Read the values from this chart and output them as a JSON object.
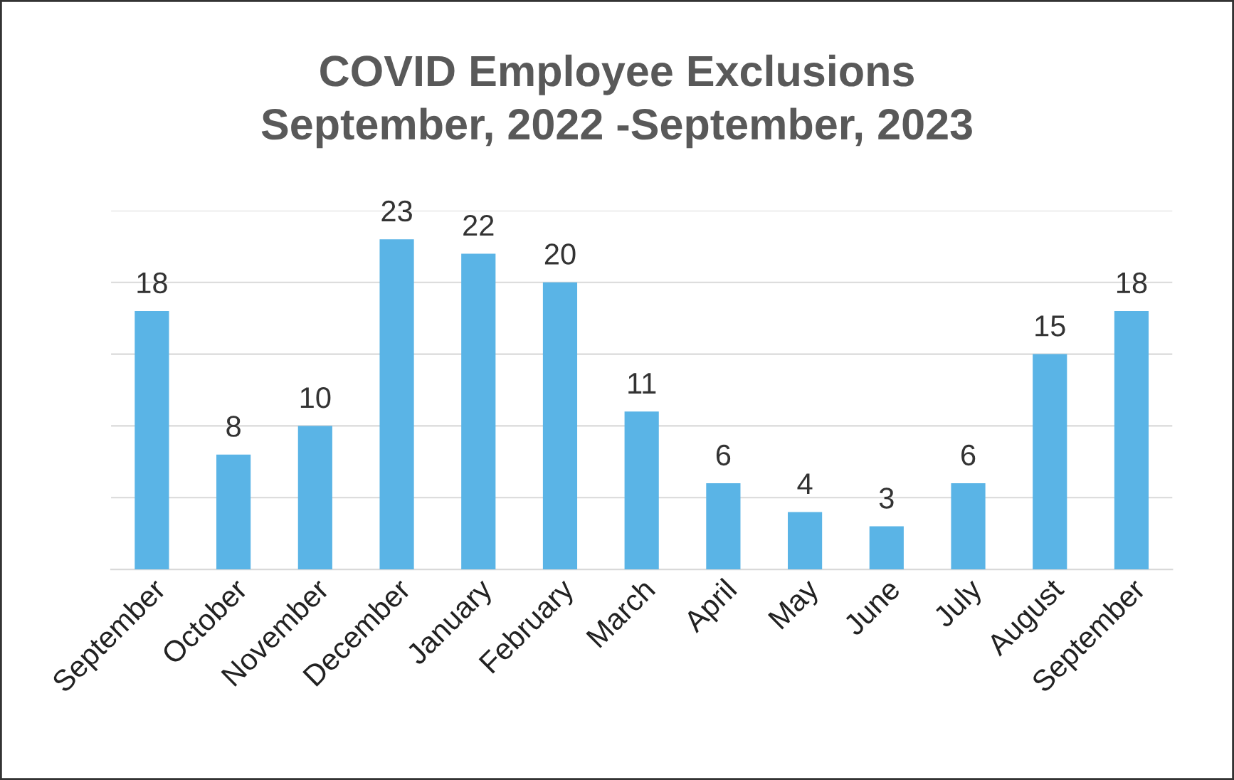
{
  "chart_data": {
    "type": "bar",
    "title": "COVID Employee Exclusions\nSeptember, 2022 -September, 2023",
    "categories": [
      "September",
      "October",
      "November",
      "December",
      "January",
      "February",
      "March",
      "April",
      "May",
      "June",
      "July",
      "August",
      "September"
    ],
    "values": [
      18,
      8,
      10,
      23,
      22,
      20,
      11,
      6,
      4,
      3,
      6,
      15,
      18
    ],
    "color": "#5ab4e6",
    "ylim": [
      0,
      25
    ],
    "yticks": [
      {
        "value": 0,
        "label": null
      },
      {
        "value": 5,
        "label": null
      },
      {
        "value": 10,
        "label": null
      },
      {
        "value": 15,
        "label": null
      },
      {
        "value": 20,
        "label": null
      },
      {
        "value": 25,
        "label": null
      }
    ],
    "grid": "y",
    "data_labels": true,
    "tick_labels": "x"
  }
}
